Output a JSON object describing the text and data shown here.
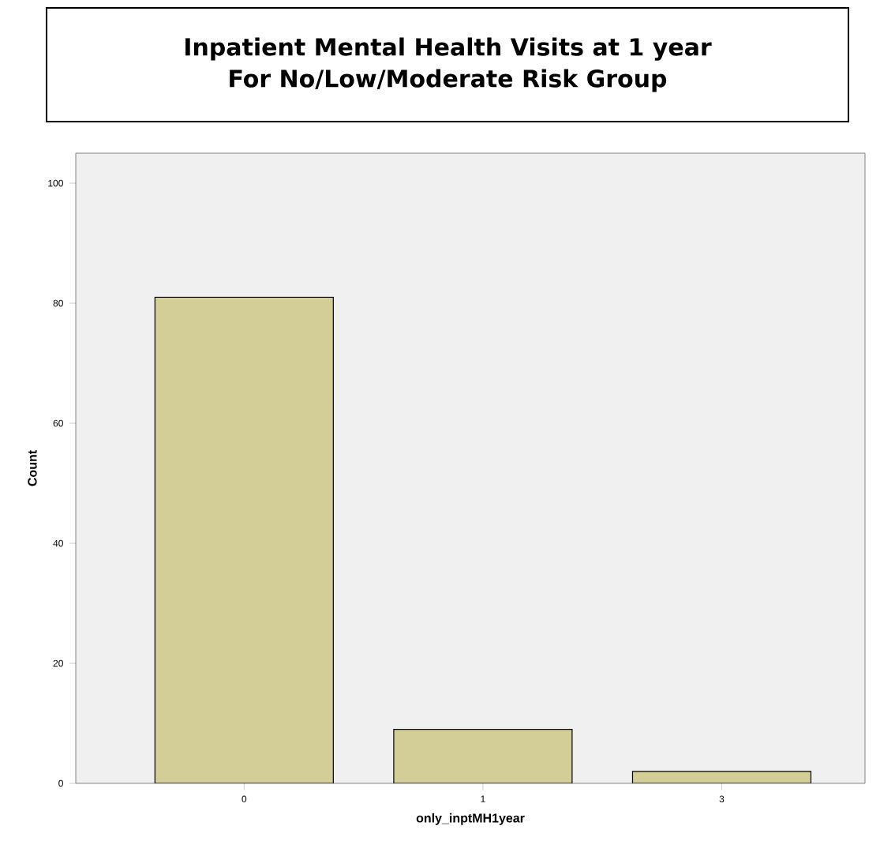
{
  "chart_data": {
    "type": "bar",
    "title": "Inpatient Mental Health Visits at 1 year",
    "subtitle": "For No/Low/Moderate Risk Group",
    "xlabel": "only_inptMH1year",
    "ylabel": "Count",
    "categories": [
      "0",
      "1",
      "3"
    ],
    "values": [
      81,
      9,
      2
    ],
    "color": "#d3ce97",
    "ylim": [
      0,
      105
    ],
    "yticks": [
      0,
      20,
      40,
      60,
      80,
      100
    ]
  }
}
